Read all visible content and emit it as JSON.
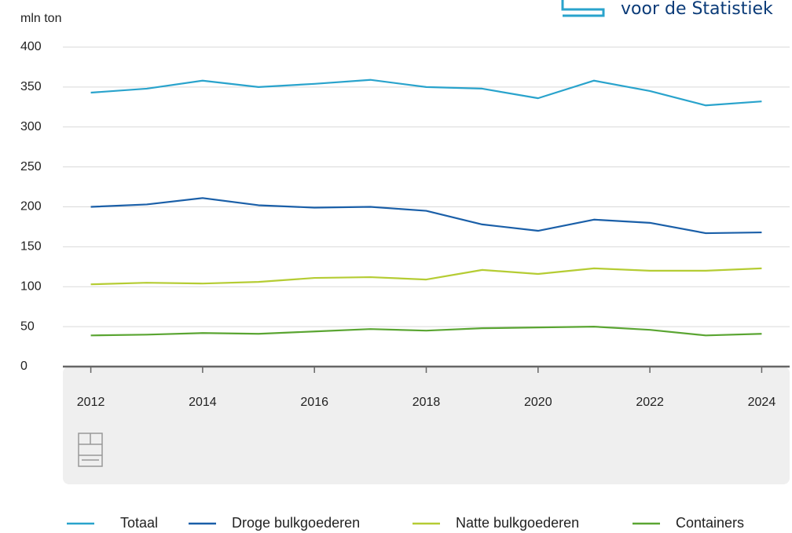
{
  "header": {
    "logo_text": "voor de Statistiek"
  },
  "chart_data": {
    "type": "line",
    "y_label": "mln ton",
    "x": [
      2012,
      2013,
      2014,
      2015,
      2016,
      2017,
      2018,
      2019,
      2020,
      2021,
      2022,
      2023,
      2024
    ],
    "xlim": [
      2011.5,
      2024.5
    ],
    "xticks": [
      2012,
      2014,
      2016,
      2018,
      2020,
      2022,
      2024
    ],
    "ylim": [
      0,
      400
    ],
    "yticks": [
      0,
      50,
      100,
      150,
      200,
      250,
      300,
      350,
      400
    ],
    "grid": true,
    "legend": "bottom",
    "series": [
      {
        "name": "Totaal",
        "color": "#29a3cc",
        "values": [
          343,
          348,
          358,
          350,
          354,
          359,
          350,
          348,
          336,
          358,
          345,
          327,
          332
        ]
      },
      {
        "name": "Droge bulkgoederen",
        "color": "#1a5fa8",
        "values": [
          200,
          203,
          211,
          202,
          199,
          200,
          195,
          178,
          170,
          184,
          180,
          167,
          168
        ]
      },
      {
        "name": "Natte bulkgoederen",
        "color": "#b5cc33",
        "values": [
          103,
          105,
          104,
          106,
          111,
          112,
          109,
          121,
          116,
          123,
          120,
          120,
          123
        ]
      },
      {
        "name": "Containers",
        "color": "#5aa532",
        "values": [
          39,
          40,
          42,
          41,
          44,
          47,
          45,
          48,
          49,
          50,
          46,
          39,
          41
        ]
      }
    ]
  }
}
